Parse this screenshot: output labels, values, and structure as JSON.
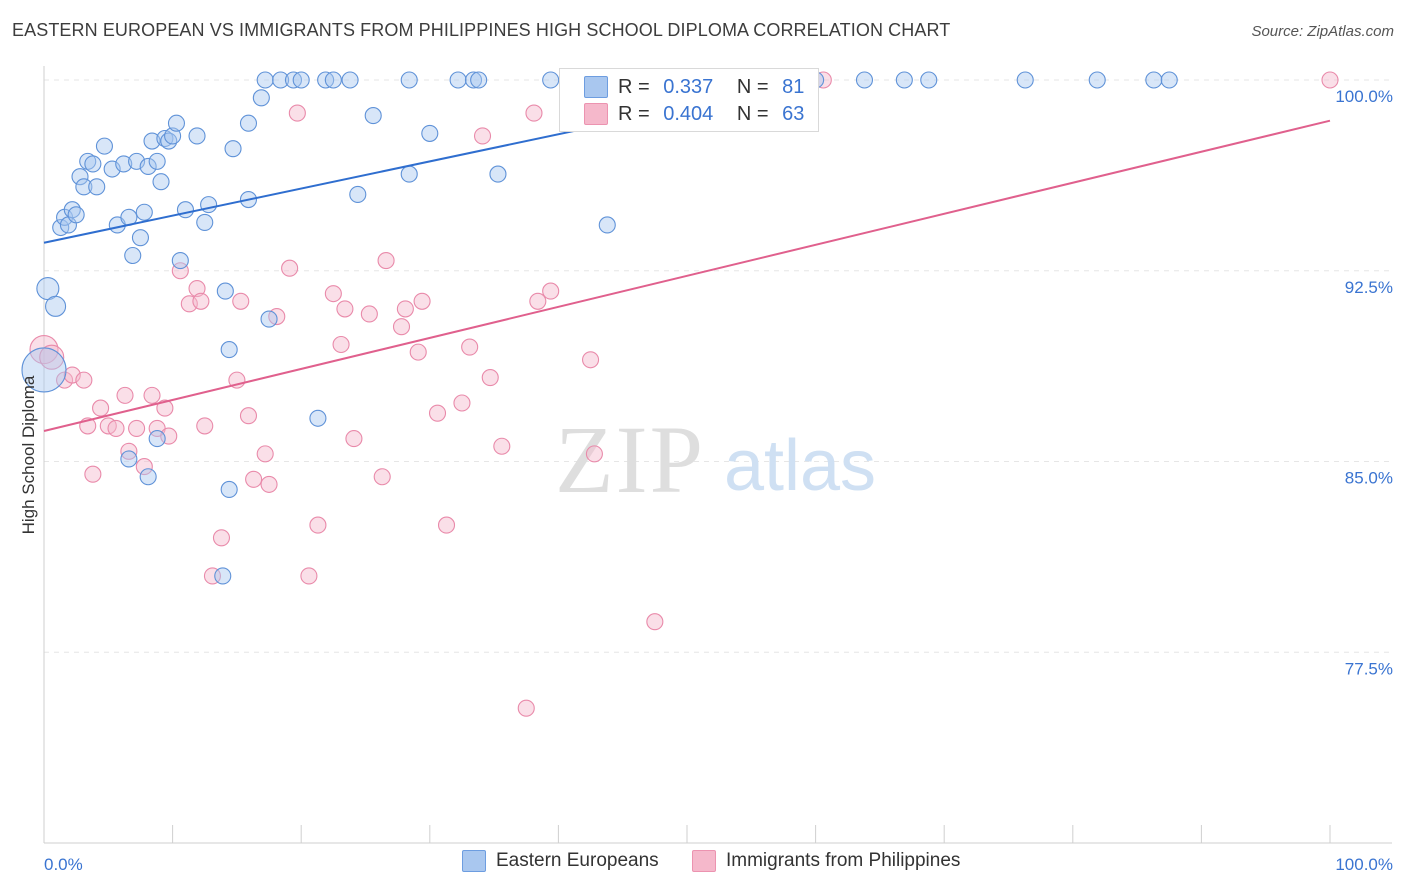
{
  "title": "EASTERN EUROPEAN VS IMMIGRANTS FROM PHILIPPINES HIGH SCHOOL DIPLOMA CORRELATION CHART",
  "source": "Source: ZipAtlas.com",
  "watermark": {
    "zip": "ZIP",
    "atlas": "atlas"
  },
  "legend": {
    "r_label": "R =",
    "n_label": "N =",
    "rows": [
      {
        "r": "0.337",
        "n": "81",
        "color": "#a9c7ef"
      },
      {
        "r": "0.404",
        "n": "63",
        "color": "#f5b8cb"
      }
    ]
  },
  "bottom_legend": [
    "Eastern Europeans",
    "Immigrants from Philippines"
  ],
  "chart_data": {
    "type": "scatter",
    "title": "EASTERN EUROPEAN VS IMMIGRANTS FROM PHILIPPINES HIGH SCHOOL DIPLOMA CORRELATION CHART",
    "xlabel": "",
    "ylabel": "High School Diploma",
    "xlim": [
      0,
      100
    ],
    "ylim": [
      70.0,
      100.0
    ],
    "x_tick_labels": [
      "0.0%",
      "100.0%"
    ],
    "y_ticks": [
      77.5,
      85.0,
      92.5,
      100.0
    ],
    "y_tick_labels": [
      "77.5%",
      "85.0%",
      "92.5%",
      "100.0%"
    ],
    "grid": true,
    "legend_position": "top-center",
    "colors": {
      "blue": "#a9c7ef",
      "blue_line": "#2f6ecf",
      "pink": "#f5b8cb",
      "pink_line": "#e0608d",
      "tick_label": "#3a74d1"
    },
    "series": [
      {
        "name": "Eastern Europeans",
        "R": 0.337,
        "N": 81,
        "trend": {
          "x": [
            0,
            60
          ],
          "y": [
            93.6,
            100.0
          ]
        },
        "points": [
          [
            0.0,
            88.6,
            22
          ],
          [
            0.3,
            91.8,
            11
          ],
          [
            0.9,
            91.1,
            10
          ],
          [
            1.3,
            94.2,
            8
          ],
          [
            1.6,
            94.6,
            8
          ],
          [
            1.9,
            94.3,
            8
          ],
          [
            2.2,
            94.9,
            8
          ],
          [
            2.5,
            94.7,
            8
          ],
          [
            2.8,
            96.2,
            8
          ],
          [
            3.1,
            95.8,
            8
          ],
          [
            3.4,
            96.8,
            8
          ],
          [
            3.8,
            96.7,
            8
          ],
          [
            4.1,
            95.8,
            8
          ],
          [
            4.7,
            97.4,
            8
          ],
          [
            5.3,
            96.5,
            8
          ],
          [
            5.7,
            94.3,
            8
          ],
          [
            6.2,
            96.7,
            8
          ],
          [
            6.6,
            94.6,
            8
          ],
          [
            6.9,
            93.1,
            8
          ],
          [
            7.2,
            96.8,
            8
          ],
          [
            7.5,
            93.8,
            8
          ],
          [
            7.8,
            94.8,
            8
          ],
          [
            8.1,
            96.6,
            8
          ],
          [
            8.4,
            97.6,
            8
          ],
          [
            8.8,
            96.8,
            8
          ],
          [
            9.1,
            96.0,
            8
          ],
          [
            9.4,
            97.7,
            8
          ],
          [
            9.7,
            97.6,
            8
          ],
          [
            10.0,
            97.8,
            8
          ],
          [
            10.3,
            98.3,
            8
          ],
          [
            10.6,
            92.9,
            8
          ],
          [
            11.0,
            94.9,
            8
          ],
          [
            11.9,
            97.8,
            8
          ],
          [
            12.5,
            94.4,
            8
          ],
          [
            12.8,
            95.1,
            8
          ],
          [
            14.1,
            91.7,
            8
          ],
          [
            14.7,
            97.3,
            8
          ],
          [
            15.9,
            95.3,
            8
          ],
          [
            17.2,
            100.0,
            8
          ],
          [
            18.4,
            100.0,
            8
          ],
          [
            19.4,
            100.0,
            8
          ],
          [
            20.0,
            100.0,
            8
          ],
          [
            21.9,
            100.0,
            8
          ],
          [
            22.5,
            100.0,
            8
          ],
          [
            23.8,
            100.0,
            8
          ],
          [
            24.4,
            95.5,
            8
          ],
          [
            25.6,
            98.6,
            8
          ],
          [
            28.4,
            100.0,
            8
          ],
          [
            32.2,
            100.0,
            8
          ],
          [
            33.4,
            100.0,
            8
          ],
          [
            33.8,
            100.0,
            8
          ],
          [
            39.4,
            100.0,
            8
          ],
          [
            44.4,
            100.0,
            8
          ],
          [
            45.0,
            100.0,
            8
          ],
          [
            48.1,
            100.0,
            8
          ],
          [
            48.8,
            100.0,
            8
          ],
          [
            49.4,
            100.0,
            8
          ],
          [
            51.3,
            100.0,
            8
          ],
          [
            53.8,
            100.0,
            8
          ],
          [
            60.0,
            100.0,
            8
          ],
          [
            63.8,
            100.0,
            8
          ],
          [
            66.9,
            100.0,
            8
          ],
          [
            68.8,
            100.0,
            8
          ],
          [
            76.3,
            100.0,
            8
          ],
          [
            81.9,
            100.0,
            8
          ],
          [
            86.3,
            100.0,
            8
          ],
          [
            87.5,
            100.0,
            8
          ],
          [
            15.9,
            98.3,
            8
          ],
          [
            16.9,
            99.3,
            8
          ],
          [
            28.4,
            96.3,
            8
          ],
          [
            30.0,
            97.9,
            8
          ],
          [
            35.3,
            96.3,
            8
          ],
          [
            43.8,
            94.3,
            8
          ],
          [
            17.5,
            90.6,
            8
          ],
          [
            14.4,
            89.4,
            8
          ],
          [
            21.3,
            86.7,
            8
          ],
          [
            8.8,
            85.9,
            8
          ],
          [
            6.6,
            85.1,
            8
          ],
          [
            8.1,
            84.4,
            8
          ],
          [
            14.4,
            83.9,
            8
          ],
          [
            13.9,
            80.5,
            8
          ]
        ]
      },
      {
        "name": "Immigrants from Philippines",
        "R": 0.404,
        "N": 63,
        "trend": {
          "x": [
            0,
            100
          ],
          "y": [
            86.2,
            98.4
          ]
        },
        "points": [
          [
            0.0,
            89.4,
            14
          ],
          [
            0.6,
            89.1,
            12
          ],
          [
            1.6,
            88.2,
            8
          ],
          [
            2.2,
            88.4,
            8
          ],
          [
            3.1,
            88.2,
            8
          ],
          [
            3.4,
            86.4,
            8
          ],
          [
            3.8,
            84.5,
            8
          ],
          [
            4.4,
            87.1,
            8
          ],
          [
            5.0,
            86.4,
            8
          ],
          [
            5.6,
            86.3,
            8
          ],
          [
            6.3,
            87.6,
            8
          ],
          [
            6.6,
            85.4,
            8
          ],
          [
            7.2,
            86.3,
            8
          ],
          [
            7.8,
            84.8,
            8
          ],
          [
            8.4,
            87.6,
            8
          ],
          [
            8.8,
            86.3,
            8
          ],
          [
            9.4,
            87.1,
            8
          ],
          [
            9.7,
            86.0,
            8
          ],
          [
            10.6,
            92.5,
            8
          ],
          [
            11.3,
            91.2,
            8
          ],
          [
            11.9,
            91.8,
            8
          ],
          [
            12.2,
            91.3,
            8
          ],
          [
            12.5,
            86.4,
            8
          ],
          [
            13.1,
            80.5,
            8
          ],
          [
            13.8,
            82.0,
            8
          ],
          [
            15.0,
            88.2,
            8
          ],
          [
            15.3,
            91.3,
            8
          ],
          [
            15.9,
            86.8,
            8
          ],
          [
            16.3,
            84.3,
            8
          ],
          [
            17.2,
            85.3,
            8
          ],
          [
            17.5,
            84.1,
            8
          ],
          [
            18.1,
            90.7,
            8
          ],
          [
            19.1,
            92.6,
            8
          ],
          [
            19.7,
            98.7,
            8
          ],
          [
            20.6,
            80.5,
            8
          ],
          [
            21.3,
            82.5,
            8
          ],
          [
            22.5,
            91.6,
            8
          ],
          [
            23.1,
            89.6,
            8
          ],
          [
            23.4,
            91.0,
            8
          ],
          [
            24.1,
            85.9,
            8
          ],
          [
            25.3,
            90.8,
            8
          ],
          [
            26.3,
            84.4,
            8
          ],
          [
            26.6,
            92.9,
            8
          ],
          [
            27.8,
            90.3,
            8
          ],
          [
            28.1,
            91.0,
            8
          ],
          [
            29.1,
            89.3,
            8
          ],
          [
            29.4,
            91.3,
            8
          ],
          [
            30.6,
            86.9,
            8
          ],
          [
            31.3,
            82.5,
            8
          ],
          [
            32.5,
            87.3,
            8
          ],
          [
            33.1,
            89.5,
            8
          ],
          [
            34.1,
            97.8,
            8
          ],
          [
            34.7,
            88.3,
            8
          ],
          [
            35.6,
            85.6,
            8
          ],
          [
            37.5,
            75.3,
            8
          ],
          [
            38.1,
            98.7,
            8
          ],
          [
            38.4,
            91.3,
            8
          ],
          [
            39.4,
            91.7,
            8
          ],
          [
            42.5,
            89.0,
            8
          ],
          [
            42.8,
            85.3,
            8
          ],
          [
            47.5,
            78.7,
            8
          ],
          [
            60.6,
            100.0,
            8
          ],
          [
            100.0,
            100.0,
            8
          ]
        ]
      }
    ]
  }
}
